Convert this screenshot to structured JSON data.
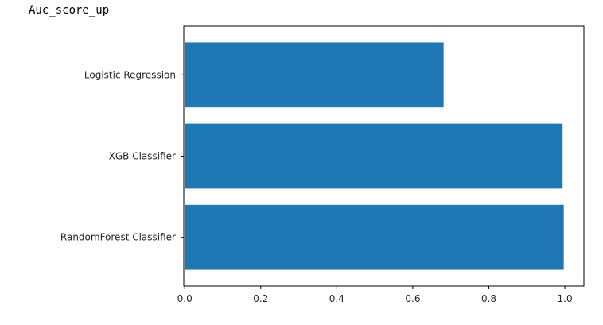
{
  "output": {
    "text": "Auc_score_up"
  },
  "colors": {
    "bar": "#1f77b4",
    "axis": "#000000",
    "text": "#262626"
  },
  "chart_data": {
    "type": "bar",
    "orientation": "horizontal",
    "categories": [
      "RandomForest Classifier",
      "XGB Classifier",
      "Logistic Regression"
    ],
    "values": [
      0.997,
      0.994,
      0.681
    ],
    "xlim": [
      -0.0025,
      1.05
    ],
    "xticks": [
      0.0,
      0.2,
      0.4,
      0.6,
      0.8,
      1.0
    ],
    "xtick_labels": [
      "0.0",
      "0.2",
      "0.4",
      "0.6",
      "0.8",
      "1.0"
    ],
    "title": "",
    "xlabel": "",
    "ylabel": "",
    "grid": false
  }
}
